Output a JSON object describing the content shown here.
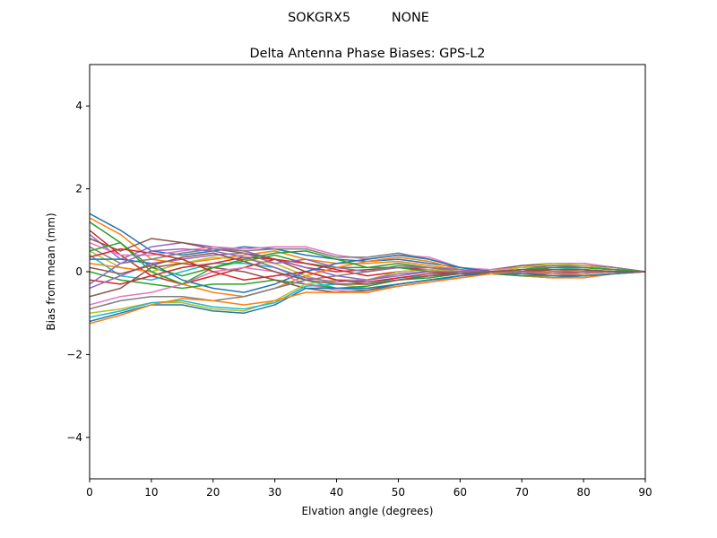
{
  "figure": {
    "suptitle": "SOKGRX5          NONE"
  },
  "chart_data": {
    "type": "line",
    "title": "Delta Antenna Phase Biases: GPS-L2",
    "xlabel": "Elvation angle (degrees)",
    "ylabel": "Bias from mean (mm)",
    "xlim": [
      0,
      90
    ],
    "ylim": [
      -5,
      5
    ],
    "xticks": [
      0,
      10,
      20,
      30,
      40,
      50,
      60,
      70,
      80,
      90
    ],
    "xtick_labels": [
      "0",
      "10",
      "20",
      "30",
      "40",
      "50",
      "60",
      "70",
      "80",
      "90"
    ],
    "yticks": [
      -4,
      -2,
      0,
      2,
      4
    ],
    "ytick_labels": [
      "−4",
      "−2",
      "0",
      "2",
      "4"
    ],
    "grid": false,
    "legend": "none",
    "colors": [
      "#1f77b4",
      "#ff7f0e",
      "#2ca02c",
      "#d62728",
      "#9467bd",
      "#8c564b",
      "#e377c2",
      "#7f7f7f",
      "#bcbd22",
      "#17becf"
    ],
    "x": [
      0,
      5,
      10,
      15,
      20,
      25,
      30,
      35,
      40,
      45,
      50,
      55,
      60,
      65,
      70,
      75,
      80,
      85,
      90
    ],
    "series": [
      {
        "values": [
          1.4,
          1.0,
          0.5,
          0.4,
          0.5,
          0.6,
          0.55,
          0.4,
          0.3,
          0.25,
          0.3,
          0.2,
          0.1,
          0.0,
          -0.05,
          -0.05,
          0.0,
          0.0,
          0.0
        ]
      },
      {
        "values": [
          1.3,
          0.9,
          0.3,
          0.2,
          0.3,
          0.4,
          0.5,
          0.3,
          0.2,
          0.2,
          0.25,
          0.15,
          0.05,
          0.0,
          -0.05,
          0.0,
          0.05,
          0.0,
          0.0
        ]
      },
      {
        "values": [
          1.2,
          0.7,
          0.1,
          -0.1,
          0.1,
          0.25,
          0.4,
          0.2,
          0.1,
          0.1,
          0.2,
          0.1,
          0.0,
          -0.05,
          0.0,
          0.05,
          0.05,
          0.0,
          0.0
        ]
      },
      {
        "values": [
          1.0,
          0.4,
          -0.1,
          -0.3,
          -0.1,
          0.1,
          0.3,
          0.1,
          0.0,
          0.05,
          0.1,
          0.05,
          -0.05,
          -0.05,
          0.0,
          0.1,
          0.1,
          0.05,
          0.0
        ]
      },
      {
        "values": [
          0.9,
          0.3,
          0.6,
          0.7,
          0.6,
          0.5,
          0.3,
          0.1,
          -0.1,
          -0.2,
          -0.1,
          0.0,
          0.0,
          0.05,
          0.1,
          0.15,
          0.1,
          0.05,
          0.0
        ]
      },
      {
        "values": [
          0.8,
          0.5,
          0.8,
          0.7,
          0.55,
          0.45,
          0.3,
          0.0,
          -0.2,
          -0.3,
          -0.2,
          -0.1,
          0.0,
          0.05,
          0.15,
          0.2,
          0.2,
          0.1,
          0.0
        ]
      },
      {
        "values": [
          0.7,
          0.4,
          0.4,
          0.5,
          0.6,
          0.55,
          0.6,
          0.6,
          0.4,
          0.3,
          0.4,
          0.35,
          0.1,
          0.05,
          0.1,
          0.2,
          0.2,
          0.1,
          0.0
        ]
      },
      {
        "values": [
          0.6,
          0.2,
          0.3,
          0.45,
          0.55,
          0.5,
          0.55,
          0.55,
          0.35,
          0.35,
          0.45,
          0.3,
          0.1,
          0.0,
          0.05,
          0.15,
          0.15,
          0.1,
          0.0
        ]
      },
      {
        "values": [
          0.5,
          0.1,
          0.0,
          0.2,
          0.35,
          0.3,
          0.2,
          -0.1,
          -0.3,
          -0.4,
          -0.3,
          -0.2,
          -0.1,
          0.0,
          0.1,
          0.2,
          0.15,
          0.05,
          0.0
        ]
      },
      {
        "values": [
          0.4,
          -0.1,
          -0.2,
          0.0,
          0.2,
          0.2,
          0.1,
          -0.2,
          -0.4,
          -0.45,
          -0.35,
          -0.25,
          -0.1,
          0.0,
          0.05,
          0.1,
          0.05,
          0.0,
          0.0
        ]
      },
      {
        "values": [
          0.3,
          0.3,
          0.2,
          -0.2,
          -0.4,
          -0.5,
          -0.3,
          0.0,
          0.2,
          0.3,
          0.4,
          0.3,
          0.1,
          0.0,
          -0.1,
          -0.15,
          -0.1,
          -0.05,
          0.0
        ]
      },
      {
        "values": [
          0.2,
          0.1,
          0.0,
          -0.3,
          -0.5,
          -0.6,
          -0.4,
          -0.1,
          0.1,
          0.25,
          0.35,
          0.25,
          0.05,
          -0.05,
          -0.1,
          -0.15,
          -0.15,
          -0.05,
          0.0
        ]
      },
      {
        "values": [
          0.0,
          -0.2,
          -0.3,
          -0.4,
          -0.3,
          -0.3,
          -0.2,
          -0.3,
          -0.4,
          -0.35,
          -0.2,
          -0.15,
          -0.05,
          -0.05,
          -0.1,
          -0.1,
          -0.05,
          0.0,
          0.0
        ]
      },
      {
        "values": [
          -0.2,
          -0.3,
          -0.1,
          0.1,
          0.2,
          0.35,
          0.3,
          0.2,
          0.05,
          -0.1,
          0.0,
          0.05,
          0.0,
          -0.05,
          -0.05,
          -0.05,
          0.0,
          0.0,
          0.0
        ]
      },
      {
        "values": [
          -0.4,
          -0.1,
          0.2,
          0.3,
          0.4,
          0.45,
          0.2,
          0.3,
          0.1,
          0.0,
          0.1,
          0.1,
          0.05,
          0.0,
          -0.05,
          -0.1,
          -0.05,
          0.0,
          0.0
        ]
      },
      {
        "values": [
          -0.6,
          -0.4,
          0.1,
          0.2,
          0.1,
          0.0,
          -0.2,
          -0.4,
          -0.5,
          -0.45,
          -0.3,
          -0.2,
          -0.1,
          0.0,
          0.05,
          0.1,
          0.1,
          0.05,
          0.0
        ]
      },
      {
        "values": [
          -0.8,
          -0.6,
          -0.5,
          -0.3,
          0.0,
          0.1,
          0.0,
          -0.3,
          -0.45,
          -0.5,
          -0.35,
          -0.25,
          -0.15,
          -0.05,
          0.0,
          0.05,
          0.05,
          0.0,
          0.0
        ]
      },
      {
        "values": [
          -0.9,
          -0.7,
          -0.6,
          -0.6,
          -0.7,
          -0.6,
          -0.4,
          -0.2,
          -0.1,
          0.0,
          0.15,
          0.1,
          0.0,
          -0.05,
          -0.05,
          -0.1,
          -0.1,
          -0.05,
          0.0
        ]
      },
      {
        "values": [
          -1.0,
          -0.9,
          -0.75,
          -0.75,
          -0.9,
          -0.95,
          -0.7,
          -0.3,
          -0.2,
          -0.2,
          0.0,
          0.05,
          0.0,
          0.0,
          -0.05,
          -0.1,
          -0.1,
          -0.05,
          0.0
        ]
      },
      {
        "values": [
          -1.1,
          -0.95,
          -0.75,
          -0.7,
          -0.85,
          -0.9,
          -0.75,
          -0.35,
          -0.3,
          -0.3,
          -0.15,
          -0.1,
          -0.05,
          0.0,
          0.0,
          -0.05,
          -0.05,
          0.0,
          0.0
        ]
      },
      {
        "values": [
          -1.2,
          -1.0,
          -0.8,
          -0.8,
          -0.95,
          -1.0,
          -0.8,
          -0.4,
          -0.4,
          -0.4,
          -0.3,
          -0.2,
          -0.1,
          -0.05,
          -0.05,
          -0.1,
          -0.1,
          -0.05,
          0.0
        ]
      },
      {
        "values": [
          -1.25,
          -1.05,
          -0.8,
          -0.65,
          -0.7,
          -0.8,
          -0.7,
          -0.5,
          -0.5,
          -0.5,
          -0.35,
          -0.25,
          -0.15,
          -0.05,
          0.0,
          -0.05,
          -0.05,
          0.0,
          0.0
        ]
      },
      {
        "values": [
          0.5,
          0.7,
          0.0,
          -0.3,
          0.1,
          0.3,
          0.45,
          0.5,
          0.3,
          0.1,
          0.1,
          0.0,
          -0.05,
          0.0,
          0.05,
          0.1,
          0.1,
          0.05,
          0.0
        ]
      },
      {
        "values": [
          0.35,
          0.55,
          0.45,
          0.3,
          0.0,
          -0.2,
          -0.1,
          0.0,
          -0.2,
          -0.25,
          -0.15,
          -0.05,
          0.0,
          0.0,
          0.0,
          0.05,
          0.05,
          0.0,
          0.0
        ]
      },
      {
        "values": [
          -0.3,
          0.2,
          0.5,
          0.55,
          0.5,
          0.35,
          0.1,
          -0.15,
          -0.25,
          -0.2,
          -0.05,
          0.0,
          0.0,
          0.0,
          0.0,
          0.0,
          0.0,
          0.0,
          0.0
        ]
      },
      {
        "values": [
          0.1,
          -0.05,
          0.15,
          0.35,
          0.45,
          0.25,
          0.0,
          -0.2,
          -0.3,
          -0.3,
          -0.2,
          -0.1,
          -0.05,
          0.0,
          0.05,
          0.05,
          0.05,
          0.0,
          0.0
        ]
      }
    ]
  }
}
